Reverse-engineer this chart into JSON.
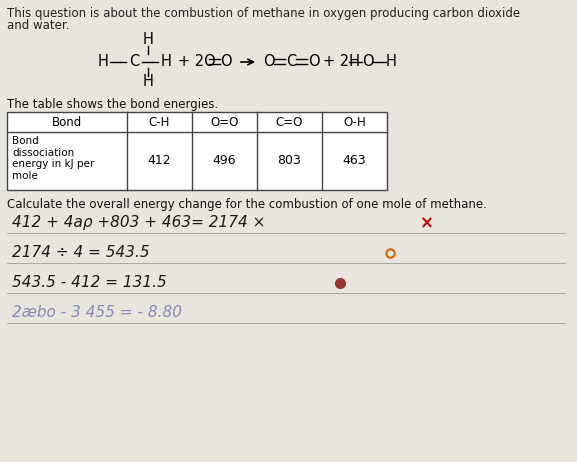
{
  "background_color": "#c8c8c0",
  "paper_color": "#e8e6dc",
  "intro_text_line1": "This question is about the combustion of methane in oxygen producing carbon dioxide",
  "intro_text_line2": "and water.",
  "table_label": "The table shows the bond energies.",
  "calculate_text": "Calculate the overall energy change for the combustion of one mole of methane.",
  "bonds_header": [
    "Bond",
    "C-H",
    "O=O",
    "C=O",
    "O-H"
  ],
  "energies_label": "Bond\ndissociation\nenergy in kJ per\nmole",
  "energy_values": [
    "412",
    "496",
    "803",
    "463"
  ],
  "hw_line1": "412 + 4aρ +803 + 463= 2174 ×",
  "hw_line2": "2174 ÷ 4 = 543.5",
  "hw_line3": "543.5 - 412 = 131.5",
  "hw_line4": "2æbo - 3 455 = - 8.80",
  "font_size_intro": 8.5,
  "font_size_table": 8.5,
  "font_size_hw": 11
}
